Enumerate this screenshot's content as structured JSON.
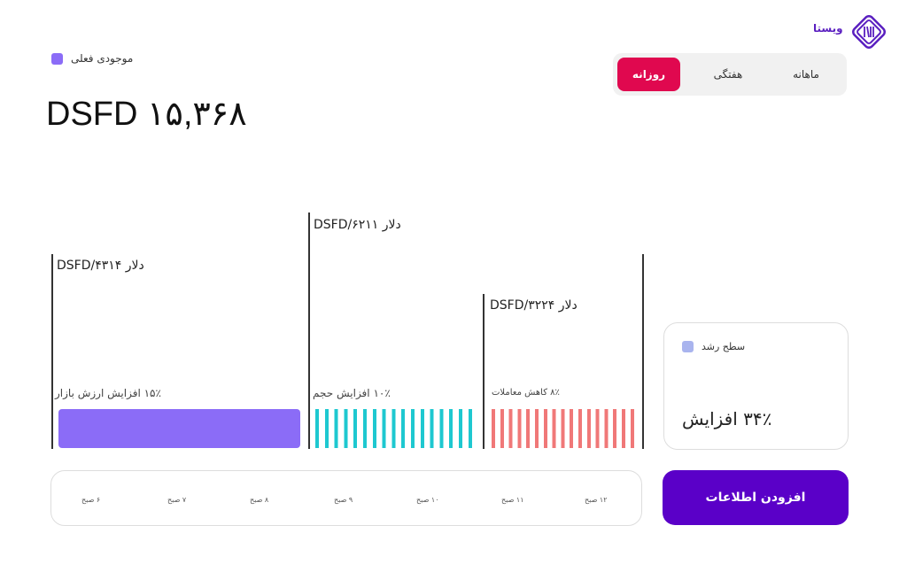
{
  "brand": {
    "name": "ویستا",
    "color": "#5a1fc0"
  },
  "balance": {
    "legend": "موجودی فعلی",
    "legend_color": "#8b6cf7",
    "value": "DSFD ۱۵,۳۶۸"
  },
  "period_tabs": [
    {
      "label": "ماهانه",
      "active": false
    },
    {
      "label": "هفتگی",
      "active": false
    },
    {
      "label": "روزانه",
      "active": true
    }
  ],
  "active_color": "#e0084f",
  "segments": [
    {
      "value_label": "DSFD/۴۳۱۴ دلار",
      "change_label": "۱۵٪ افزایش ارزش بازار",
      "color": "#8b6cf7"
    },
    {
      "value_label": "DSFD/۶۲۱۱ دلار",
      "change_label": "۱۰٪ افزایش حجم",
      "color": "#1ec8d0"
    },
    {
      "value_label": "DSFD/۳۲۲۴ دلار",
      "change_label": "۸٪ کاهش معاملات",
      "color": "#f07878"
    }
  ],
  "time_axis": [
    "۶ صبح",
    "۷ صبح",
    "۸ صبح",
    "۹ صبح",
    "۱۰ صبح",
    "۱۱ صبح",
    "۱۲ صبح"
  ],
  "growth": {
    "legend": "سطح رشد",
    "legend_color": "#a9b4ee",
    "value": "۳۴٪ افزایش"
  },
  "add_button": {
    "label": "افزودن اطلاعات",
    "color": "#5a00c8"
  }
}
